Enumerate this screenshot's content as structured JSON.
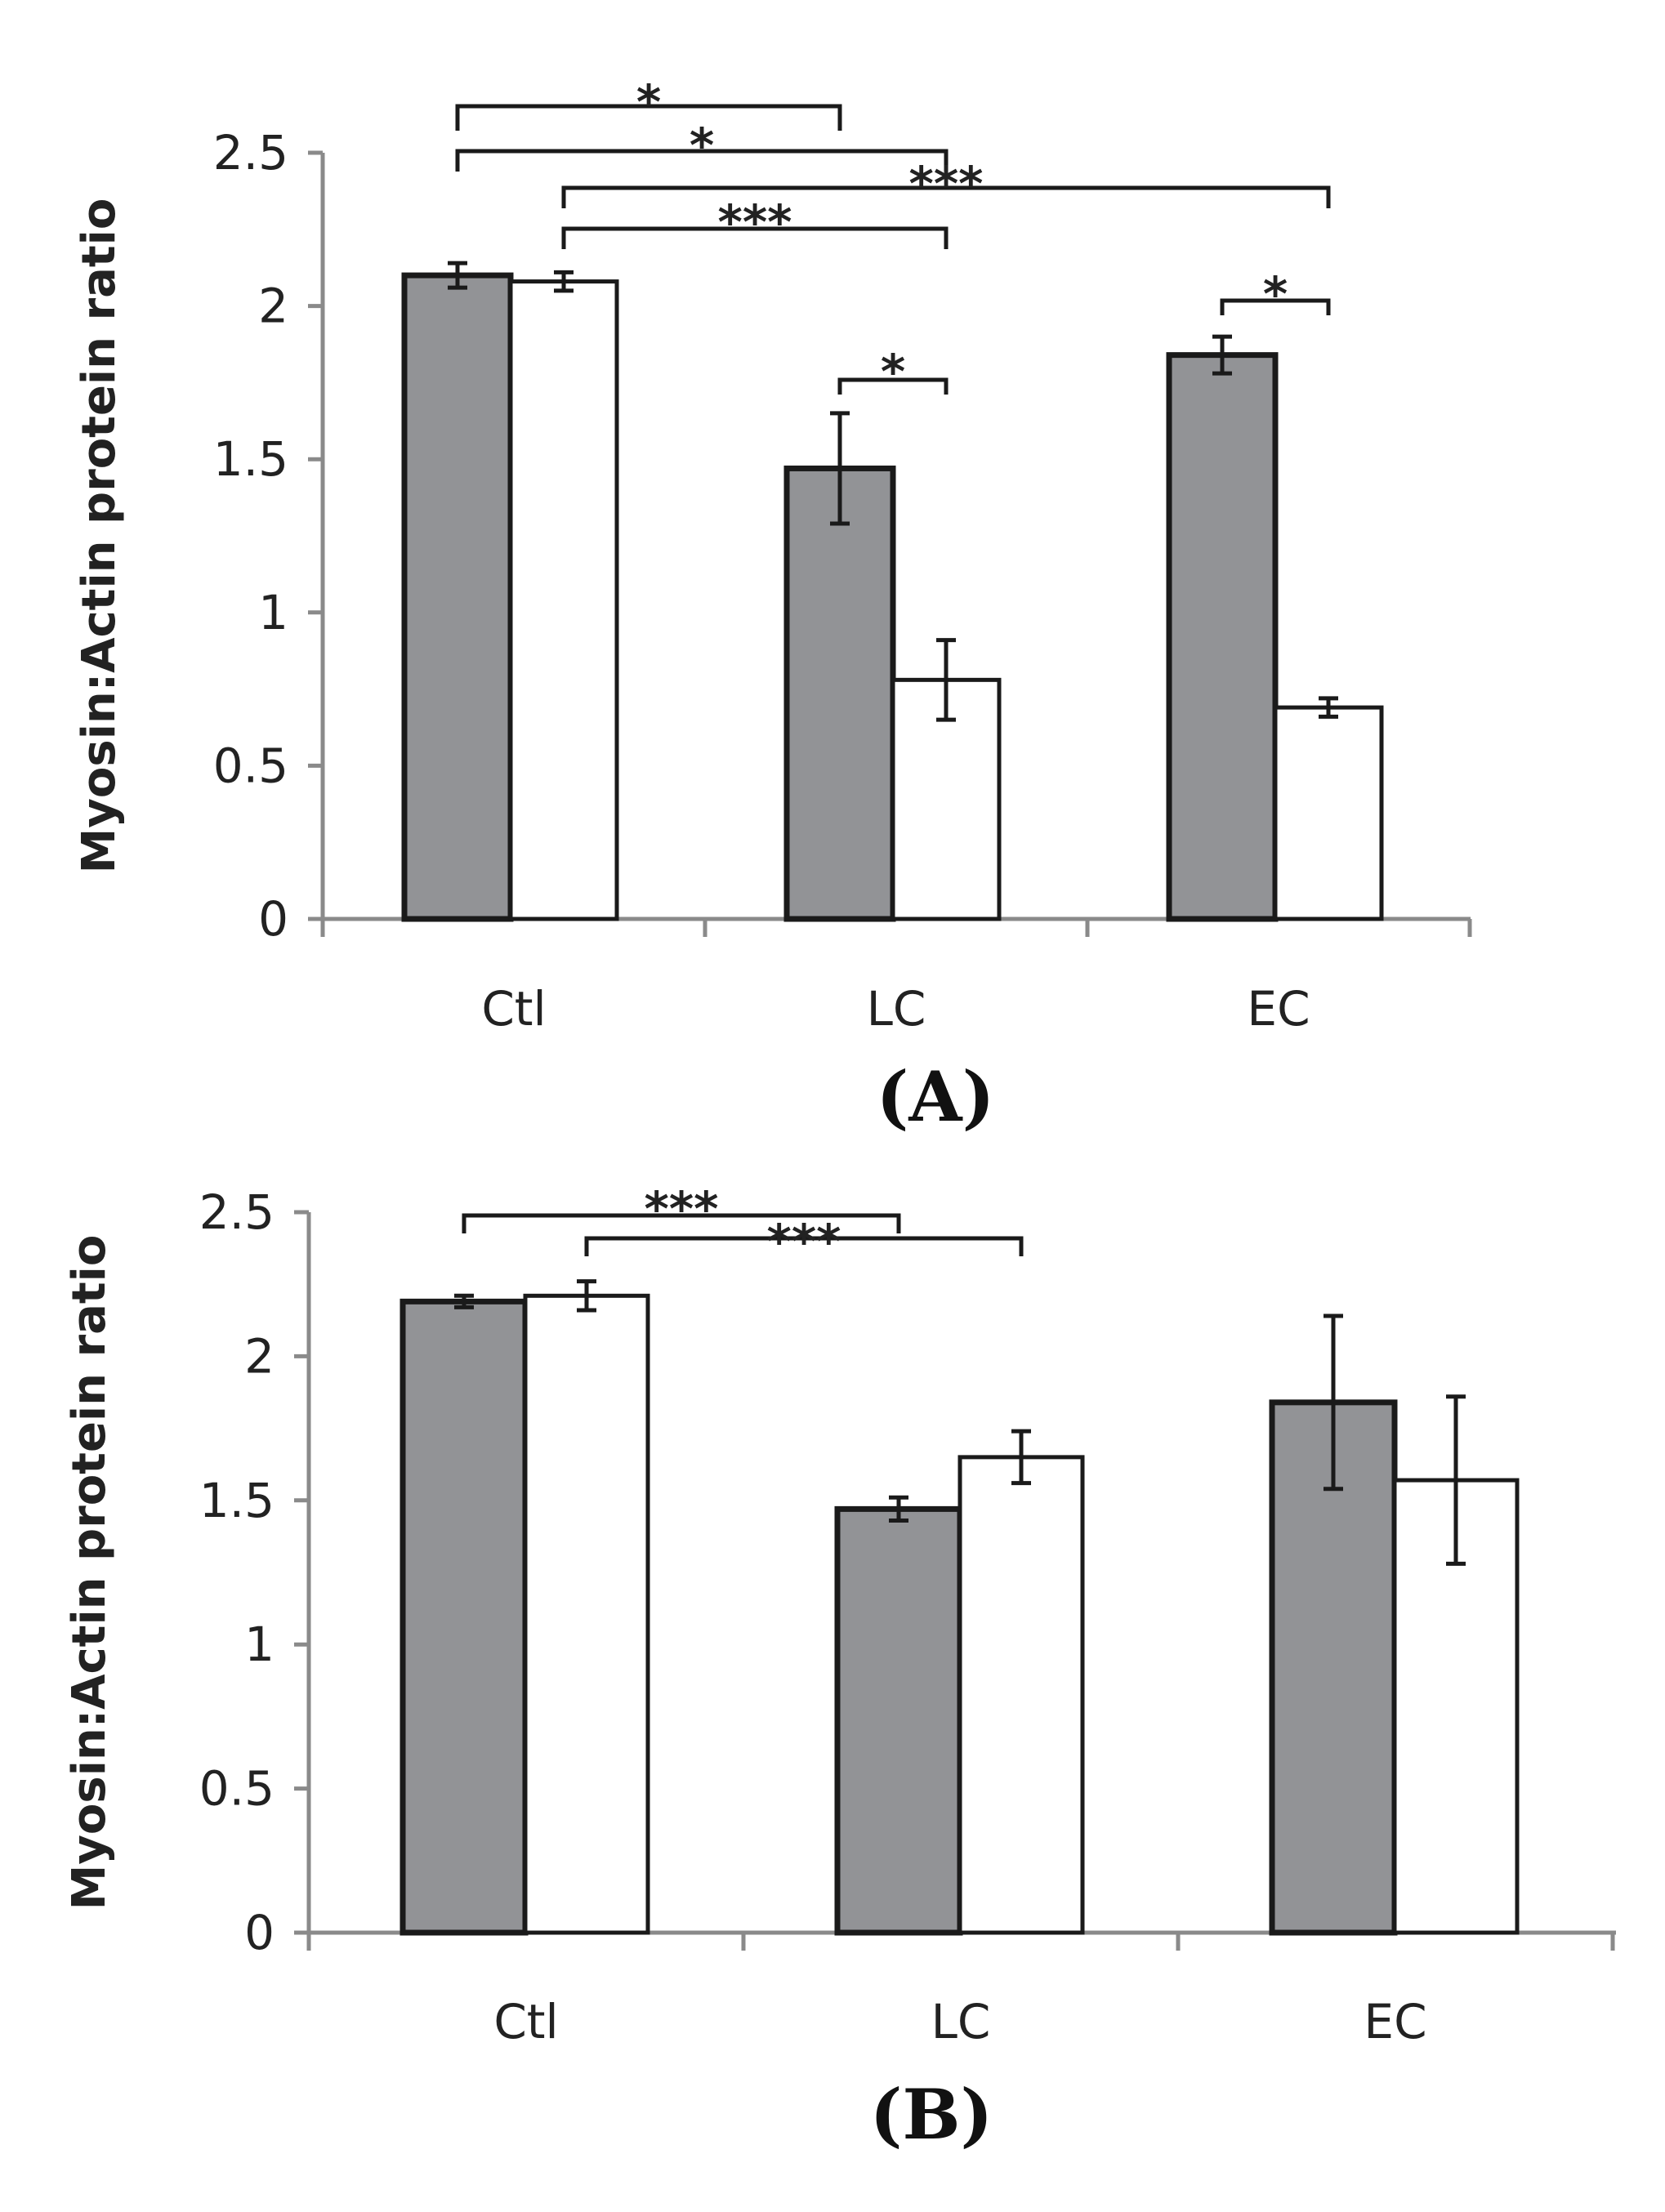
{
  "colors": {
    "series_a": "#929396",
    "series_b": "#ffffff",
    "stroke": "#1a1a1a",
    "axis": "#8a8a8a"
  },
  "chart_data": [
    {
      "id": "A",
      "type": "bar",
      "panel_label": "(A)",
      "ylabel": "Myosin:Actin protein ratio",
      "xlabel": "",
      "ylim": [
        0,
        2.5
      ],
      "yticks": [
        0,
        0.5,
        1,
        1.5,
        2,
        2.5
      ],
      "ytick_labels": [
        "0",
        "0.5",
        "1",
        "1.5",
        "2",
        "2.5"
      ],
      "categories": [
        "Ctl",
        "LC",
        "EC"
      ],
      "series": [
        {
          "name": "grey",
          "values": [
            2.1,
            1.47,
            1.84
          ],
          "errors": [
            0.04,
            0.18,
            0.06
          ]
        },
        {
          "name": "white",
          "values": [
            2.08,
            0.78,
            0.69
          ],
          "errors": [
            0.03,
            0.13,
            0.03
          ]
        }
      ],
      "significance": [
        {
          "label": "*",
          "from": [
            0,
            0
          ],
          "to": [
            1,
            0
          ]
        },
        {
          "label": "*",
          "from": [
            0,
            0
          ],
          "to": [
            1,
            1
          ]
        },
        {
          "label": "***",
          "from": [
            0,
            1
          ],
          "to": [
            1,
            1
          ]
        },
        {
          "label": "***",
          "from": [
            0,
            1
          ],
          "to": [
            2,
            1
          ]
        },
        {
          "label": "*",
          "from": [
            1,
            0
          ],
          "to": [
            1,
            1
          ]
        },
        {
          "label": "*",
          "from": [
            2,
            0
          ],
          "to": [
            2,
            1
          ]
        }
      ]
    },
    {
      "id": "B",
      "type": "bar",
      "panel_label": "(B)",
      "ylabel": "Myosin:Actin protein ratio",
      "xlabel": "",
      "ylim": [
        0,
        2.5
      ],
      "yticks": [
        0,
        0.5,
        1,
        1.5,
        2,
        2.5
      ],
      "ytick_labels": [
        "0",
        "0.5",
        "1",
        "1.5",
        "2",
        "2.5"
      ],
      "categories": [
        "Ctl",
        "LC",
        "EC"
      ],
      "series": [
        {
          "name": "grey",
          "values": [
            2.19,
            1.47,
            1.84
          ],
          "errors": [
            0.02,
            0.04,
            0.3
          ]
        },
        {
          "name": "white",
          "values": [
            2.21,
            1.65,
            1.57
          ],
          "errors": [
            0.05,
            0.09,
            0.29
          ]
        }
      ],
      "significance": [
        {
          "label": "***",
          "from": [
            0,
            0
          ],
          "to": [
            1,
            0
          ]
        },
        {
          "label": "***",
          "from": [
            0,
            1
          ],
          "to": [
            1,
            1
          ]
        }
      ]
    }
  ]
}
